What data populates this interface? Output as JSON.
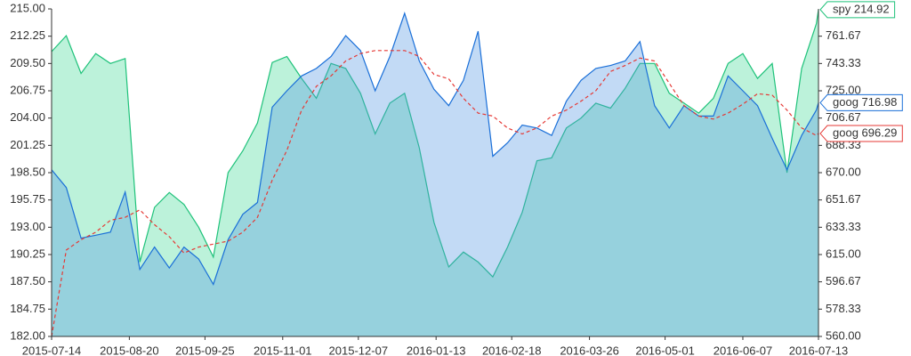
{
  "chart_data": {
    "type": "area",
    "x": [
      "2015-07-14",
      "2015-07-21",
      "2015-07-28",
      "2015-08-04",
      "2015-08-11",
      "2015-08-18",
      "2015-08-25",
      "2015-09-01",
      "2015-09-08",
      "2015-09-15",
      "2015-09-22",
      "2015-09-29",
      "2015-10-06",
      "2015-10-13",
      "2015-10-20",
      "2015-10-27",
      "2015-11-03",
      "2015-11-10",
      "2015-11-17",
      "2015-11-24",
      "2015-12-01",
      "2015-12-08",
      "2015-12-15",
      "2015-12-22",
      "2015-12-29",
      "2016-01-05",
      "2016-01-12",
      "2016-01-19",
      "2016-01-26",
      "2016-02-02",
      "2016-02-09",
      "2016-02-16",
      "2016-02-23",
      "2016-03-01",
      "2016-03-08",
      "2016-03-15",
      "2016-03-22",
      "2016-03-29",
      "2016-04-05",
      "2016-04-12",
      "2016-04-19",
      "2016-04-26",
      "2016-05-03",
      "2016-05-10",
      "2016-05-17",
      "2016-05-24",
      "2016-05-31",
      "2016-06-07",
      "2016-06-14",
      "2016-06-21",
      "2016-06-28",
      "2016-07-05",
      "2016-07-12",
      "2016-07-13"
    ],
    "series": [
      {
        "name": "spy",
        "color": "#1fc27a",
        "fill": "rgba(46,214,140,0.32)",
        "axis": "y",
        "end_label": "spy 214.92",
        "values": [
          210.7,
          212.3,
          208.5,
          210.5,
          209.5,
          210,
          189.5,
          195,
          196.5,
          195.3,
          193,
          190,
          198.5,
          200.7,
          203.5,
          209.6,
          210.2,
          208,
          206,
          209.5,
          209,
          206.5,
          202.4,
          205.5,
          206.5,
          201,
          193.5,
          189,
          190.5,
          189.5,
          188,
          191,
          194.5,
          199.7,
          200,
          203,
          204,
          205.5,
          205,
          207,
          209.5,
          209.5,
          206.5,
          205.5,
          204.5,
          206,
          209.5,
          210.5,
          208,
          209.5,
          198.5,
          209,
          213.5,
          214.92
        ]
      },
      {
        "name": "goog",
        "color": "#1a6fd8",
        "fill": "rgba(80,150,225,0.35)",
        "axis": "y2",
        "end_label": "goog 716.98",
        "values": [
          672,
          660,
          626,
          628,
          630,
          657,
          605,
          620,
          606,
          620,
          612,
          595,
          625,
          642,
          650,
          714,
          725,
          735,
          740,
          748,
          762,
          752,
          725,
          748,
          777,
          745,
          726,
          715,
          732,
          765,
          681,
          690,
          702,
          700,
          695,
          718,
          732,
          740,
          742,
          745,
          758,
          715,
          700,
          715,
          708,
          708,
          735,
          725,
          715,
          693,
          672,
          695,
          712,
          716.98
        ]
      },
      {
        "name": "goog",
        "color": "#e53935",
        "dashed": true,
        "axis": "y2",
        "end_label": "goog 696.29",
        "values": [
          560,
          618,
          625,
          630,
          638,
          640,
          645,
          635,
          627,
          616,
          620,
          622,
          624,
          630,
          640,
          665,
          685,
          712,
          728,
          735,
          745,
          750,
          752,
          752,
          752,
          748,
          736,
          733,
          720,
          710,
          708,
          700,
          696,
          700,
          708,
          712,
          718,
          725,
          738,
          742,
          747,
          745,
          730,
          715,
          708,
          706,
          710,
          716,
          723,
          722,
          712,
          700,
          695,
          696.29
        ]
      }
    ],
    "xlim": [
      "2015-07-14",
      "2016-07-13"
    ],
    "xticks": [
      "2015-07-14",
      "2015-08-20",
      "2015-09-25",
      "2015-11-01",
      "2015-12-07",
      "2016-01-13",
      "2016-02-18",
      "2016-03-26",
      "2016-05-01",
      "2016-06-07",
      "2016-07-13"
    ],
    "ylim": [
      182,
      215
    ],
    "yticks": [
      {
        "value": 182,
        "label": "182.00"
      },
      184.75,
      {
        "value": 187.5,
        "label": "187.50"
      },
      190.25,
      {
        "value": 193,
        "label": "193.00"
      },
      195.75,
      {
        "value": 198.5,
        "label": "198.50"
      },
      201.25,
      {
        "value": 204,
        "label": "204.00"
      },
      206.75,
      {
        "value": 209.5,
        "label": "209.50"
      },
      212.25,
      {
        "value": 215,
        "label": "215.00"
      }
    ],
    "y2lim": [
      560,
      780
    ],
    "y2ticks": [
      {
        "value": 560,
        "label": "560.00"
      },
      578.33,
      596.67,
      {
        "value": 615,
        "label": "615.00"
      },
      633.33,
      651.67,
      {
        "value": 670,
        "label": "670.00"
      },
      688.33,
      706.67,
      {
        "value": 725,
        "label": "725.00"
      },
      743.33,
      761.67
    ]
  }
}
